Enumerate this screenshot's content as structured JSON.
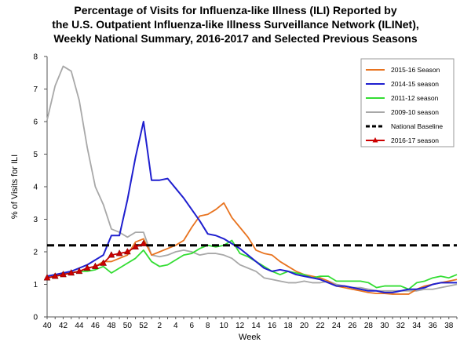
{
  "chart_data": {
    "type": "line",
    "title_lines": [
      "Percentage of Visits for Influenza-like Illness (ILI) Reported by",
      "the U.S. Outpatient Influenza-like Illness Surveillance Network (ILINet),",
      "Weekly National Summary, 2016-2017 and Selected Previous Seasons"
    ],
    "xlabel": "Week",
    "ylabel": "% of Visits for ILI",
    "ylim": [
      0,
      8
    ],
    "yticks": [
      0,
      1,
      2,
      3,
      4,
      5,
      6,
      7,
      8
    ],
    "x_tick_labels": [
      "40",
      "42",
      "44",
      "46",
      "48",
      "50",
      "52",
      "2",
      "4",
      "6",
      "8",
      "10",
      "12",
      "14",
      "16",
      "18",
      "20",
      "22",
      "24",
      "26",
      "28",
      "30",
      "32",
      "34",
      "36",
      "38"
    ],
    "weeks": [
      40,
      41,
      42,
      43,
      44,
      45,
      46,
      47,
      48,
      49,
      50,
      51,
      52,
      1,
      2,
      3,
      4,
      5,
      6,
      7,
      8,
      9,
      10,
      11,
      12,
      13,
      14,
      15,
      16,
      17,
      18,
      19,
      20,
      21,
      22,
      23,
      24,
      25,
      26,
      27,
      28,
      29,
      30,
      31,
      32,
      33,
      34,
      35,
      36,
      37,
      38,
      39
    ],
    "grid": false,
    "legend_position": "top-right",
    "series": [
      {
        "name": "2015-16 Season",
        "color": "#e8731f",
        "marker": "none",
        "values": [
          1.2,
          1.25,
          1.3,
          1.35,
          1.4,
          1.5,
          1.55,
          1.7,
          1.7,
          1.8,
          1.9,
          2.3,
          2.4,
          1.9,
          2.0,
          2.1,
          2.2,
          2.35,
          2.75,
          3.1,
          3.15,
          3.3,
          3.5,
          3.05,
          2.75,
          2.45,
          2.05,
          1.95,
          1.9,
          1.7,
          1.55,
          1.4,
          1.3,
          1.25,
          1.2,
          1.1,
          0.95,
          0.9,
          0.85,
          0.8,
          0.75,
          0.72,
          0.72,
          0.7,
          0.7,
          0.7,
          0.85,
          0.95,
          1.0,
          1.05,
          1.1,
          1.15
        ]
      },
      {
        "name": "2014-15 season",
        "color": "#1f1fcf",
        "marker": "none",
        "values": [
          1.25,
          1.3,
          1.35,
          1.4,
          1.5,
          1.6,
          1.75,
          1.9,
          2.5,
          2.5,
          3.6,
          4.9,
          6.0,
          4.2,
          4.2,
          4.25,
          3.95,
          3.65,
          3.3,
          2.95,
          2.55,
          2.5,
          2.4,
          2.25,
          2.1,
          1.9,
          1.7,
          1.5,
          1.4,
          1.45,
          1.4,
          1.3,
          1.25,
          1.2,
          1.15,
          1.05,
          0.95,
          0.95,
          0.9,
          0.85,
          0.8,
          0.8,
          0.75,
          0.75,
          0.8,
          0.85,
          0.85,
          0.9,
          1.0,
          1.05,
          1.05,
          1.05
        ]
      },
      {
        "name": "2011-12 season",
        "color": "#33dd33",
        "marker": "none",
        "values": [
          1.2,
          1.25,
          1.3,
          1.35,
          1.4,
          1.4,
          1.45,
          1.55,
          1.35,
          1.5,
          1.65,
          1.8,
          2.05,
          1.7,
          1.55,
          1.6,
          1.75,
          1.9,
          1.95,
          2.1,
          2.2,
          2.15,
          2.2,
          2.35,
          1.95,
          1.85,
          1.7,
          1.55,
          1.4,
          1.3,
          1.4,
          1.35,
          1.3,
          1.2,
          1.25,
          1.25,
          1.1,
          1.1,
          1.1,
          1.1,
          1.05,
          0.9,
          0.95,
          0.95,
          0.95,
          0.85,
          1.05,
          1.1,
          1.2,
          1.25,
          1.2,
          1.3
        ]
      },
      {
        "name": "2009-10 season",
        "color": "#a8a8a8",
        "marker": "none",
        "values": [
          6.05,
          7.1,
          7.7,
          7.55,
          6.65,
          5.2,
          4.0,
          3.45,
          2.7,
          2.6,
          2.45,
          2.6,
          2.6,
          1.9,
          1.85,
          1.9,
          2.0,
          2.05,
          2.0,
          1.9,
          1.95,
          1.95,
          1.9,
          1.8,
          1.6,
          1.5,
          1.4,
          1.2,
          1.15,
          1.1,
          1.05,
          1.05,
          1.1,
          1.05,
          1.05,
          1.1,
          1.0,
          0.95,
          0.9,
          0.9,
          0.85,
          0.8,
          0.8,
          0.8,
          0.8,
          0.8,
          0.8,
          0.85,
          0.85,
          0.9,
          0.95,
          1.0
        ]
      },
      {
        "name": "National Baseline",
        "color": "#000000",
        "dashed": true,
        "constant": 2.2
      },
      {
        "name": "2016-17 season",
        "color": "#cc0000",
        "marker": "triangle",
        "values": [
          1.2,
          1.25,
          1.3,
          1.35,
          1.4,
          1.5,
          1.55,
          1.65,
          1.9,
          1.95,
          2.0,
          2.15,
          2.25
        ]
      }
    ]
  }
}
